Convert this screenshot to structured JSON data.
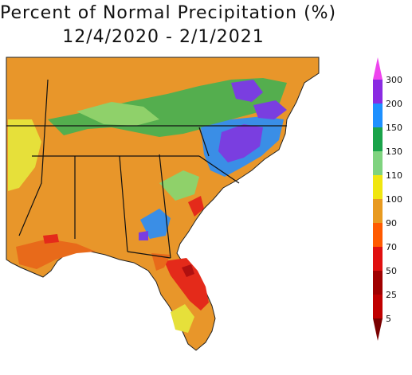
{
  "title": {
    "line1": "Percent of Normal Precipitation (%)",
    "line2": "12/4/2020 - 2/1/2021"
  },
  "legend": {
    "labels": [
      "300",
      "200",
      "150",
      "130",
      "110",
      "100",
      "90",
      "70",
      "50",
      "25",
      "5"
    ],
    "colors": [
      "#ee44ee",
      "#8a2be2",
      "#1e90ff",
      "#1aa34a",
      "#7fd37f",
      "#f0e610",
      "#e89a20",
      "#ff5a00",
      "#e01010",
      "#a00000"
    ]
  },
  "map_colors": {
    "orange": "#e8962a",
    "green": "#4caf50",
    "light_green": "#8fd16a",
    "yellow": "#e6e03a",
    "blue": "#3a8ee6",
    "purple": "#7a3ee0",
    "red": "#e42a1a",
    "dark_red": "#b01010",
    "dark_orange": "#e86a1a"
  }
}
